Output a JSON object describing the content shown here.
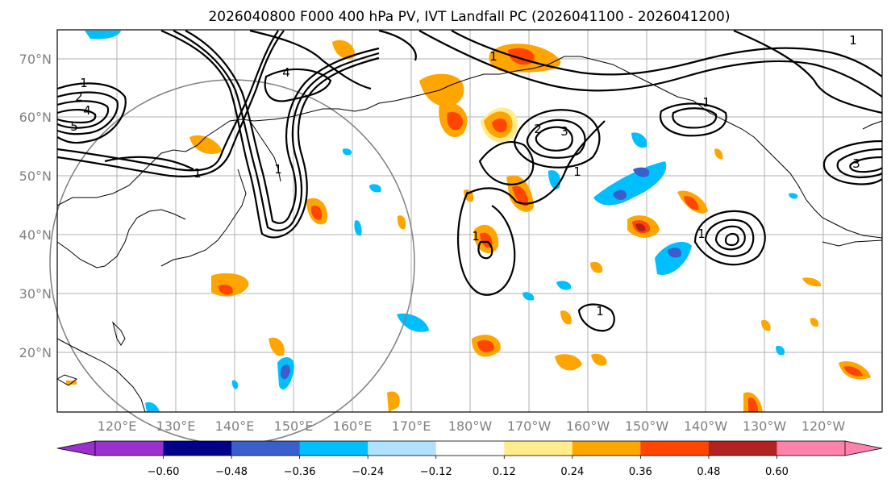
{
  "title": "2026040800 F000 400 hPa PV, IVT Landfall PC (2026041100 - 2026041200)",
  "map": {
    "lat_labels": [
      "70°N",
      "60°N",
      "50°N",
      "40°N",
      "30°N",
      "20°N"
    ],
    "lon_labels": [
      "120°E",
      "130°E",
      "140°E",
      "150°E",
      "160°E",
      "170°E",
      "180°W",
      "170°W",
      "160°W",
      "150°W",
      "140°W",
      "130°W",
      "120°W"
    ],
    "contour_labels": [
      "1",
      "2",
      "4",
      "5",
      "1",
      "4",
      "1",
      "1",
      "2",
      "3",
      "1",
      "1",
      "3",
      "1",
      "1",
      "1",
      "1"
    ]
  },
  "colorbar": {
    "colors": [
      "#9932cc",
      "#00008b",
      "#3a5fcd",
      "#00bfff",
      "#b0e2ff",
      "#ffffff",
      "#ffec8b",
      "#ffa500",
      "#ff4500",
      "#b22222",
      "#ff82ab"
    ],
    "tick_labels": [
      "−0.60",
      "−0.48",
      "−0.36",
      "−0.24",
      "−0.12",
      "0.12",
      "0.24",
      "0.36",
      "0.48",
      "0.60"
    ]
  },
  "colors": {
    "pos_light": "#ffec8b",
    "pos_mid": "#ffa500",
    "pos_strong": "#ff4500",
    "neg_light": "#b0e2ff",
    "neg_mid": "#00bfff",
    "neg_strong": "#3a5fcd"
  }
}
